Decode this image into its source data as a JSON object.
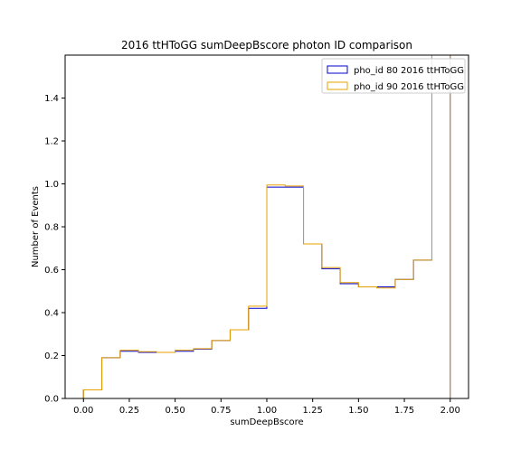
{
  "chart_data": {
    "type": "histogram-step",
    "title": "2016 ttHToGG sumDeepBscore photon ID comparison",
    "xlabel": "sumDeepBscore",
    "ylabel": "Number of Events",
    "xlim": [
      -0.1,
      2.1
    ],
    "ylim": [
      0,
      1.6
    ],
    "xticks": [
      0.0,
      0.25,
      0.5,
      0.75,
      1.0,
      1.25,
      1.5,
      1.75,
      2.0
    ],
    "xtick_labels": [
      "0.00",
      "0.25",
      "0.50",
      "0.75",
      "1.00",
      "1.25",
      "1.50",
      "1.75",
      "2.00"
    ],
    "yticks": [
      0.0,
      0.2,
      0.4,
      0.6,
      0.8,
      1.0,
      1.2,
      1.4
    ],
    "ytick_labels": [
      "0.0",
      "0.2",
      "0.4",
      "0.6",
      "0.8",
      "1.0",
      "1.2",
      "1.4"
    ],
    "bin_edges": [
      0.0,
      0.1,
      0.2,
      0.3,
      0.4,
      0.5,
      0.6,
      0.7,
      0.8,
      0.9,
      1.0,
      1.1,
      1.2,
      1.3,
      1.4,
      1.5,
      1.6,
      1.7,
      1.8,
      1.9,
      2.0
    ],
    "grid": false,
    "legend_position": "top-right",
    "series": [
      {
        "name": "pho_id 80 2016 ttHToGG",
        "color": "#0000cc",
        "values": [
          0.04,
          0.19,
          0.22,
          0.215,
          0.215,
          0.22,
          0.23,
          0.27,
          0.32,
          0.42,
          0.985,
          0.985,
          0.72,
          0.605,
          0.535,
          0.52,
          0.52,
          0.555,
          0.645,
          1.6
        ]
      },
      {
        "name": "pho_id 90 2016 ttHToGG",
        "color": "#e6a000",
        "values": [
          0.04,
          0.19,
          0.225,
          0.218,
          0.215,
          0.225,
          0.232,
          0.27,
          0.32,
          0.43,
          0.995,
          0.99,
          0.72,
          0.61,
          0.54,
          0.52,
          0.515,
          0.555,
          0.645,
          1.6
        ]
      }
    ]
  }
}
